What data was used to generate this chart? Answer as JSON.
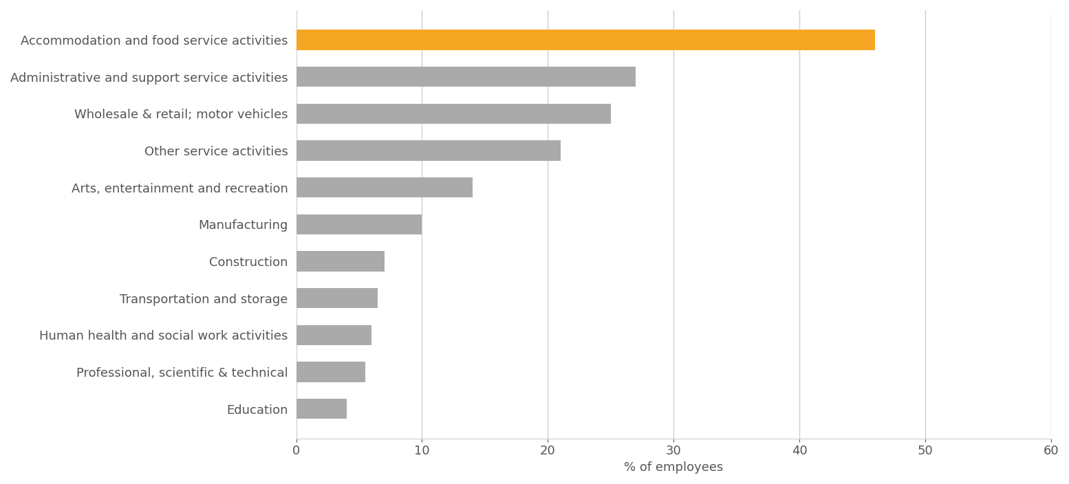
{
  "categories": [
    "Accommodation and food service activities",
    "Administrative and support service activities",
    "Wholesale & retail; motor vehicles",
    "Other service activities",
    "Arts, entertainment and recreation",
    "Manufacturing",
    "Construction",
    "Transportation and storage",
    "Human health and social work activities",
    "Professional, scientific & technical",
    "Education"
  ],
  "values": [
    46.0,
    27.0,
    25.0,
    21.0,
    14.0,
    10.0,
    7.0,
    6.5,
    6.0,
    5.5,
    4.0
  ],
  "bar_colors": [
    "#f5a623",
    "#aaaaaa",
    "#aaaaaa",
    "#aaaaaa",
    "#aaaaaa",
    "#aaaaaa",
    "#aaaaaa",
    "#aaaaaa",
    "#aaaaaa",
    "#aaaaaa",
    "#aaaaaa"
  ],
  "xlabel": "% of employees",
  "xlim": [
    0,
    60
  ],
  "xticks": [
    0,
    10,
    20,
    30,
    40,
    50,
    60
  ],
  "background_color": "#ffffff",
  "grid_color": "#d0d0d0",
  "bar_height": 0.55,
  "label_color": "#555555",
  "tick_color": "#555555",
  "label_fontsize": 13,
  "tick_fontsize": 13
}
